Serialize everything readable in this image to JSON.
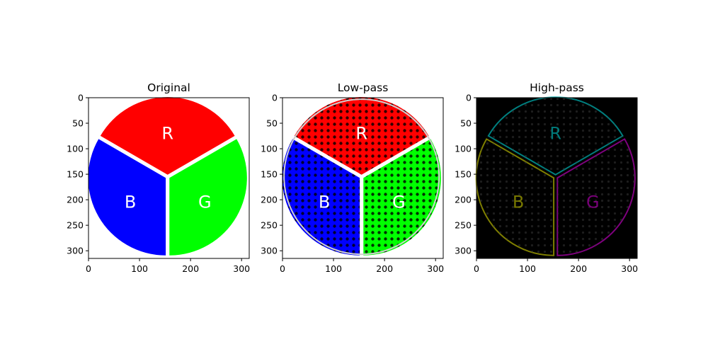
{
  "figure": {
    "panels": [
      {
        "id": "original",
        "title": "Original",
        "background": "#ffffff"
      },
      {
        "id": "low-pass",
        "title": "Low-pass",
        "background": "#ffffff"
      },
      {
        "id": "high-pass",
        "title": "High-pass",
        "background": "#000000"
      }
    ],
    "segment_labels": [
      "R",
      "B",
      "G"
    ]
  },
  "chart_data": [
    {
      "type": "image",
      "title": "Original",
      "xlim": [
        0,
        315
      ],
      "ylim": [
        315,
        0
      ],
      "xticks": [
        0,
        100,
        200,
        300
      ],
      "yticks": [
        0,
        50,
        100,
        150,
        200,
        250,
        300
      ],
      "segments": [
        {
          "label": "R",
          "color": "#ff0000"
        },
        {
          "label": "B",
          "color": "#0000ff"
        },
        {
          "label": "G",
          "color": "#00ff00"
        }
      ]
    },
    {
      "type": "image",
      "title": "Low-pass",
      "xlim": [
        0,
        315
      ],
      "ylim": [
        315,
        0
      ],
      "xticks": [
        0,
        100,
        200,
        300
      ],
      "yticks": [
        0,
        50,
        100,
        150,
        200,
        250,
        300
      ],
      "segments": [
        {
          "label": "R",
          "color": "#ff0000"
        },
        {
          "label": "B",
          "color": "#0000ff"
        },
        {
          "label": "G",
          "color": "#00ff00"
        }
      ]
    },
    {
      "type": "image",
      "title": "High-pass",
      "xlim": [
        0,
        315
      ],
      "ylim": [
        315,
        0
      ],
      "xticks": [
        0,
        100,
        200,
        300
      ],
      "yticks": [
        0,
        50,
        100,
        150,
        200,
        250,
        300
      ],
      "segments": [
        {
          "label": "R",
          "color": "#00aaaa"
        },
        {
          "label": "B",
          "color": "#aaaa00"
        },
        {
          "label": "G",
          "color": "#aa00aa"
        }
      ]
    }
  ]
}
